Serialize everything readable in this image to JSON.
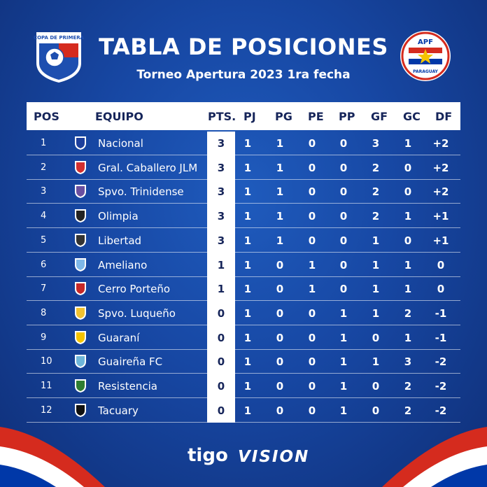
{
  "header": {
    "title": "TABLA DE POSICIONES",
    "subtitle": "Torneo Apertura 2023 1ra fecha",
    "left_logo_text": "COPA DE PRIMERA",
    "right_logo_text": "APF",
    "right_logo_subtext": "PARAGUAY"
  },
  "columns": {
    "pos": "POS",
    "team": "EQUIPO",
    "pts": "PTS.",
    "pj": "PJ",
    "pg": "PG",
    "pe": "PE",
    "pp": "PP",
    "gf": "GF",
    "gc": "GC",
    "df": "DF"
  },
  "rows": [
    {
      "pos": "1",
      "team": "Nacional",
      "pts": "3",
      "pj": "1",
      "pg": "1",
      "pe": "0",
      "pp": "0",
      "gf": "3",
      "gc": "1",
      "df": "+2",
      "crest": "nacional-crest-icon",
      "color": "#1d3f9c"
    },
    {
      "pos": "2",
      "team": "Gral. Caballero JLM",
      "pts": "3",
      "pj": "1",
      "pg": "1",
      "pe": "0",
      "pp": "0",
      "gf": "2",
      "gc": "0",
      "df": "+2",
      "crest": "caballero-crest-icon",
      "color": "#d32f2f"
    },
    {
      "pos": "3",
      "team": "Spvo. Trinidense",
      "pts": "3",
      "pj": "1",
      "pg": "1",
      "pe": "0",
      "pp": "0",
      "gf": "2",
      "gc": "0",
      "df": "+2",
      "crest": "trinidense-crest-icon",
      "color": "#6a4fa0"
    },
    {
      "pos": "4",
      "team": "Olimpia",
      "pts": "3",
      "pj": "1",
      "pg": "1",
      "pe": "0",
      "pp": "0",
      "gf": "2",
      "gc": "1",
      "df": "+1",
      "crest": "olimpia-crest-icon",
      "color": "#222222"
    },
    {
      "pos": "5",
      "team": "Libertad",
      "pts": "3",
      "pj": "1",
      "pg": "1",
      "pe": "0",
      "pp": "0",
      "gf": "1",
      "gc": "0",
      "df": "+1",
      "crest": "libertad-crest-icon",
      "color": "#333333"
    },
    {
      "pos": "6",
      "team": "Ameliano",
      "pts": "1",
      "pj": "1",
      "pg": "0",
      "pe": "1",
      "pp": "0",
      "gf": "1",
      "gc": "1",
      "df": "0",
      "crest": "ameliano-crest-icon",
      "color": "#7fb8e8"
    },
    {
      "pos": "7",
      "team": "Cerro Porteño",
      "pts": "1",
      "pj": "1",
      "pg": "0",
      "pe": "1",
      "pp": "0",
      "gf": "1",
      "gc": "1",
      "df": "0",
      "crest": "cerro-crest-icon",
      "color": "#c62828"
    },
    {
      "pos": "8",
      "team": "Spvo. Luqueño",
      "pts": "0",
      "pj": "1",
      "pg": "0",
      "pe": "0",
      "pp": "1",
      "gf": "1",
      "gc": "2",
      "df": "-1",
      "crest": "luqueno-crest-icon",
      "color": "#f2c230"
    },
    {
      "pos": "9",
      "team": "Guaraní",
      "pts": "0",
      "pj": "1",
      "pg": "0",
      "pe": "0",
      "pp": "1",
      "gf": "0",
      "gc": "1",
      "df": "-1",
      "crest": "guarani-crest-icon",
      "color": "#f5c400"
    },
    {
      "pos": "10",
      "team": "Guaireña FC",
      "pts": "0",
      "pj": "1",
      "pg": "0",
      "pe": "0",
      "pp": "1",
      "gf": "1",
      "gc": "3",
      "df": "-2",
      "crest": "guairena-crest-icon",
      "color": "#6fb6d9"
    },
    {
      "pos": "11",
      "team": "Resistencia",
      "pts": "0",
      "pj": "1",
      "pg": "0",
      "pe": "0",
      "pp": "1",
      "gf": "0",
      "gc": "2",
      "df": "-2",
      "crest": "resistencia-crest-icon",
      "color": "#2e7d32"
    },
    {
      "pos": "12",
      "team": "Tacuary",
      "pts": "0",
      "pj": "1",
      "pg": "0",
      "pe": "0",
      "pp": "1",
      "gf": "0",
      "gc": "2",
      "df": "-2",
      "crest": "tacuary-crest-icon",
      "color": "#111111"
    }
  ],
  "footer": {
    "sponsor_1": "tigo",
    "sponsor_2": "VISION"
  },
  "colors": {
    "background": "#1747a3",
    "header_text": "#16255a",
    "flag_red": "#d52b1e",
    "flag_blue": "#0038a8"
  }
}
